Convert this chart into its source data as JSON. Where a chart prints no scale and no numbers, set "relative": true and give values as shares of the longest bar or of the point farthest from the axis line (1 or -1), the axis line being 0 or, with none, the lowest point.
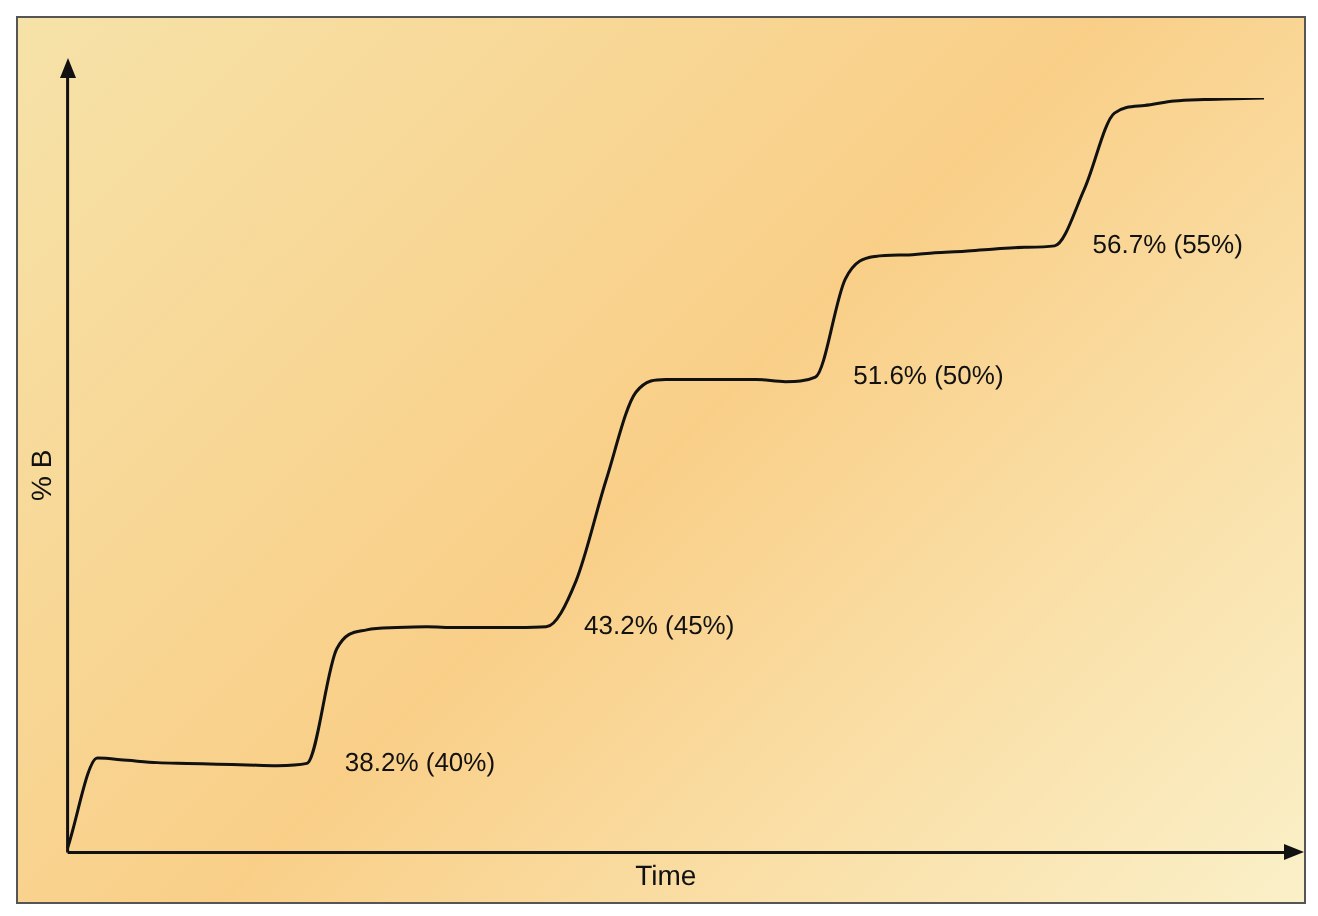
{
  "chart_data": {
    "type": "line",
    "relative": true,
    "xlabel": "Time",
    "ylabel": "% B",
    "color": "#111111",
    "grid": false,
    "legend": false,
    "marker": "none",
    "categories": [
      null,
      null,
      null,
      null,
      null,
      null,
      null,
      null,
      null,
      null,
      null,
      null,
      null,
      null,
      null,
      null,
      null,
      null,
      null,
      null,
      null,
      null,
      null,
      null,
      null,
      null,
      null,
      null,
      null,
      null,
      null,
      null,
      null,
      null,
      null,
      null,
      null,
      null,
      null,
      null,
      null
    ],
    "values": [
      0.006,
      0.125,
      0.122,
      0.119,
      0.118,
      0.117,
      0.116,
      0.115,
      0.118,
      0.27,
      0.295,
      0.298,
      0.299,
      0.298,
      0.298,
      0.298,
      0.299,
      0.36,
      0.493,
      0.61,
      0.627,
      0.627,
      0.627,
      0.627,
      0.624,
      0.63,
      0.76,
      0.79,
      0.792,
      0.795,
      0.797,
      0.8,
      0.802,
      0.804,
      0.88,
      0.98,
      0.99,
      0.996,
      0.998,
      0.999,
      1
    ],
    "annotations": [
      "38.2% (40%)",
      "43.2% (45%)",
      "51.6% (50%)",
      "56.7% (55%)"
    ]
  }
}
